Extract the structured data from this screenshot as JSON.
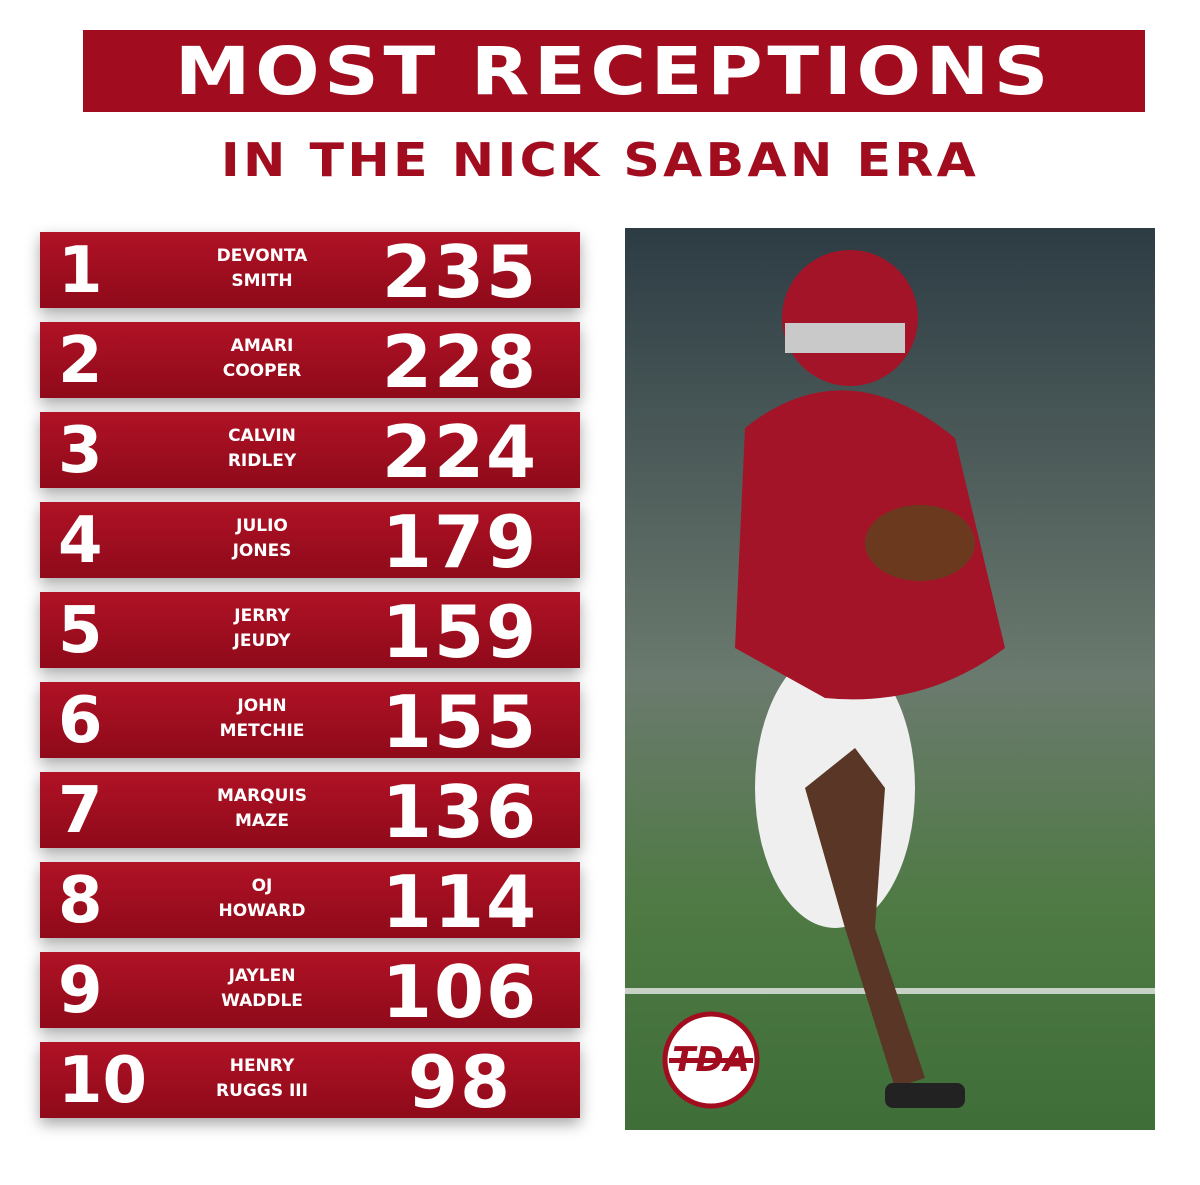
{
  "header": {
    "title": "MOST RECEPTIONS",
    "subtitle": "IN THE NICK SABAN ERA"
  },
  "table": {
    "rows": [
      {
        "rank": 1,
        "first": "DEVONTA",
        "last": "SMITH",
        "value": 235
      },
      {
        "rank": 2,
        "first": "AMARI",
        "last": "COOPER",
        "value": 228
      },
      {
        "rank": 3,
        "first": "CALVIN",
        "last": "RIDLEY",
        "value": 224
      },
      {
        "rank": 4,
        "first": "JULIO",
        "last": "JONES",
        "value": 179
      },
      {
        "rank": 5,
        "first": "JERRY",
        "last": "JEUDY",
        "value": 159
      },
      {
        "rank": 6,
        "first": "JOHN",
        "last": "METCHIE",
        "value": 155
      },
      {
        "rank": 7,
        "first": "MARQUIS",
        "last": "MAZE",
        "value": 136
      },
      {
        "rank": 8,
        "first": "OJ",
        "last": "HOWARD",
        "value": 114
      },
      {
        "rank": 9,
        "first": "JAYLEN",
        "last": "WADDLE",
        "value": 106
      },
      {
        "rank": 10,
        "first": "HENRY",
        "last": "RUGGS III",
        "value": 98
      }
    ]
  },
  "logo": {
    "text": "TDA"
  }
}
